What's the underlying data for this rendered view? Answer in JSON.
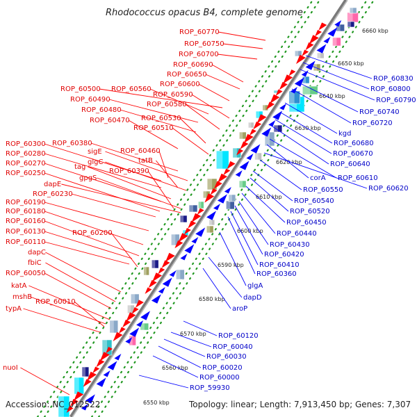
{
  "title": "Rhodococcus opacus B4, complete genome",
  "accession": "Accession: NC_012522",
  "topology": "Topology: linear; Length: 7,913,450 bp; Genes: 7,307",
  "colors": {
    "forward": "#ff0000",
    "reverse": "#0000ff",
    "axis": "#8c8c8c",
    "dots": "#229922",
    "red_label": "#e00000",
    "blue_label": "#0000c8"
  },
  "kbp_ticks": [
    {
      "label": "6550 kbp",
      "pos": 6550
    },
    {
      "label": "6560 kbp",
      "pos": 6560
    },
    {
      "label": "6570 kbp",
      "pos": 6570
    },
    {
      "label": "6580 kbp",
      "pos": 6580
    },
    {
      "label": "6590 kbp",
      "pos": 6590
    },
    {
      "label": "6600 kbp",
      "pos": 6600
    },
    {
      "label": "6610 kbp",
      "pos": 6610
    },
    {
      "label": "6620 kbp",
      "pos": 6620
    },
    {
      "label": "6630 kbp",
      "pos": 6630
    },
    {
      "label": "6640 kbp",
      "pos": 6640
    },
    {
      "label": "6650 kbp",
      "pos": 6650
    },
    {
      "label": "6660 kbp",
      "pos": 6660
    }
  ],
  "forward_genes": [
    "ROP_60770",
    "ROP_60750",
    "ROP_60700",
    "ROP_60690",
    "ROP_60650",
    "ROP_60600",
    "ROP_60500",
    "ROP_60560",
    "ROP_60590",
    "ROP_60490",
    "ROP_60580",
    "ROP_60480",
    "ROP_60530",
    "ROP_60470",
    "ROP_60510",
    "ROP_60380",
    "ROP_60300",
    "sigE",
    "ROP_60460",
    "ROP_60280",
    "glgC",
    "tatB",
    "ROP_60270",
    "tag",
    "ROP_60390",
    "ROP_60250",
    "gpgS",
    "dapE",
    "ROP_60230",
    "ROP_60190",
    "ROP_60180",
    "ROP_60160",
    "ROP_60200",
    "ROP_60130",
    "ROP_60110",
    "dapC",
    "fbiC",
    "ROP_60050",
    "katA",
    "mshB",
    "ROP_60010",
    "typA",
    "nuoI"
  ],
  "reverse_genes": [
    "ROP_60830",
    "ROP_60800",
    "ROP_60790",
    "ROP_60740",
    "ROP_60720",
    "kgd",
    "ROP_60680",
    "ROP_60670",
    "ROP_60640",
    "ROP_60610",
    "corA",
    "ROP_60620",
    "ROP_60550",
    "ROP_60540",
    "ROP_60520",
    "ROP_60450",
    "ROP_60440",
    "ROP_60430",
    "ROP_60420",
    "ROP_60410",
    "ROP_60360",
    "glgA",
    "dapD",
    "aroP",
    "ROP_60120",
    "ROP_60040",
    "ROP_60030",
    "ROP_60020",
    "ROP_60000",
    "ROP_59930"
  ]
}
